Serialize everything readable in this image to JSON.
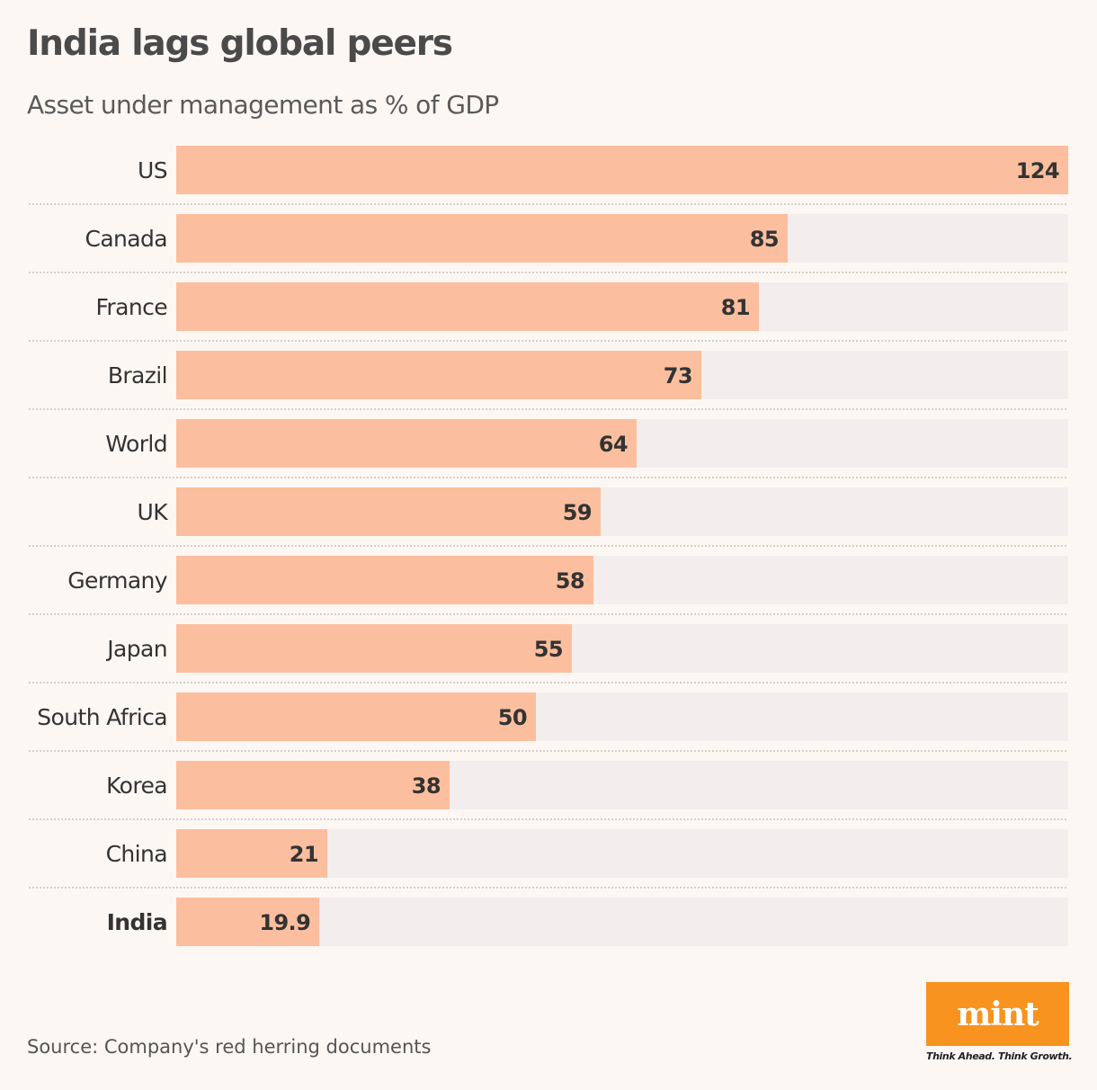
{
  "chart_data": {
    "type": "bar",
    "orientation": "horizontal",
    "title": "India lags global peers",
    "subtitle": "Asset under management as % of GDP",
    "categories": [
      "US",
      "Canada",
      "France",
      "Brazil",
      "World",
      "UK",
      "Germany",
      "Japan",
      "South Africa",
      "Korea",
      "China",
      "India"
    ],
    "values": [
      124,
      85,
      81,
      73,
      64,
      59,
      58,
      55,
      50,
      38,
      21,
      19.9
    ],
    "value_labels": [
      "124",
      "85",
      "81",
      "73",
      "64",
      "59",
      "58",
      "55",
      "50",
      "38",
      "21",
      "19.9"
    ],
    "highlight": "India",
    "xlim": [
      0,
      124
    ],
    "grid": false,
    "legend": "none"
  },
  "source": "Source: Company's red herring documents",
  "logo": {
    "word": "mint",
    "tagline": "Think Ahead. Think Growth."
  },
  "colors": {
    "bar": "#fbbf9f",
    "track": "#f3eeed",
    "background": "#fdf7f4",
    "logo": "#f7931e",
    "text": "#333333"
  }
}
